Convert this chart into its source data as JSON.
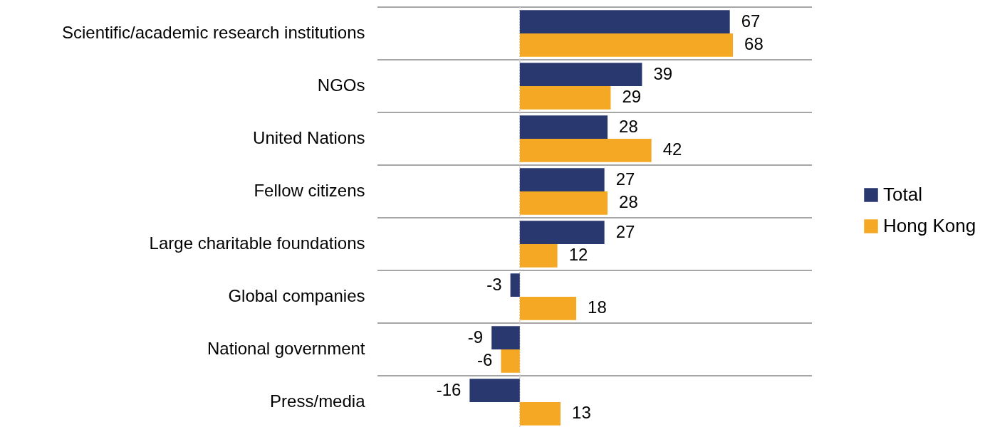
{
  "chart_data": {
    "type": "bar",
    "orientation": "horizontal",
    "categories": [
      "Scientific/academic research institutions",
      "NGOs",
      "United Nations",
      "Fellow citizens",
      "Large charitable foundations",
      "Global companies",
      "National government",
      "Press/media"
    ],
    "series": [
      {
        "name": "Total",
        "color": "#2a3870",
        "values": [
          67,
          39,
          28,
          27,
          27,
          -3,
          -9,
          -16
        ]
      },
      {
        "name": "Hong Kong",
        "color": "#f5a823",
        "values": [
          68,
          29,
          42,
          28,
          12,
          18,
          -6,
          13
        ]
      }
    ],
    "ref_lines": [
      {
        "axis": "x",
        "value": 0,
        "color": "#d0d0d0",
        "line_style": "dotted"
      }
    ],
    "data_labels": true,
    "grid": "y",
    "legend": "right"
  }
}
